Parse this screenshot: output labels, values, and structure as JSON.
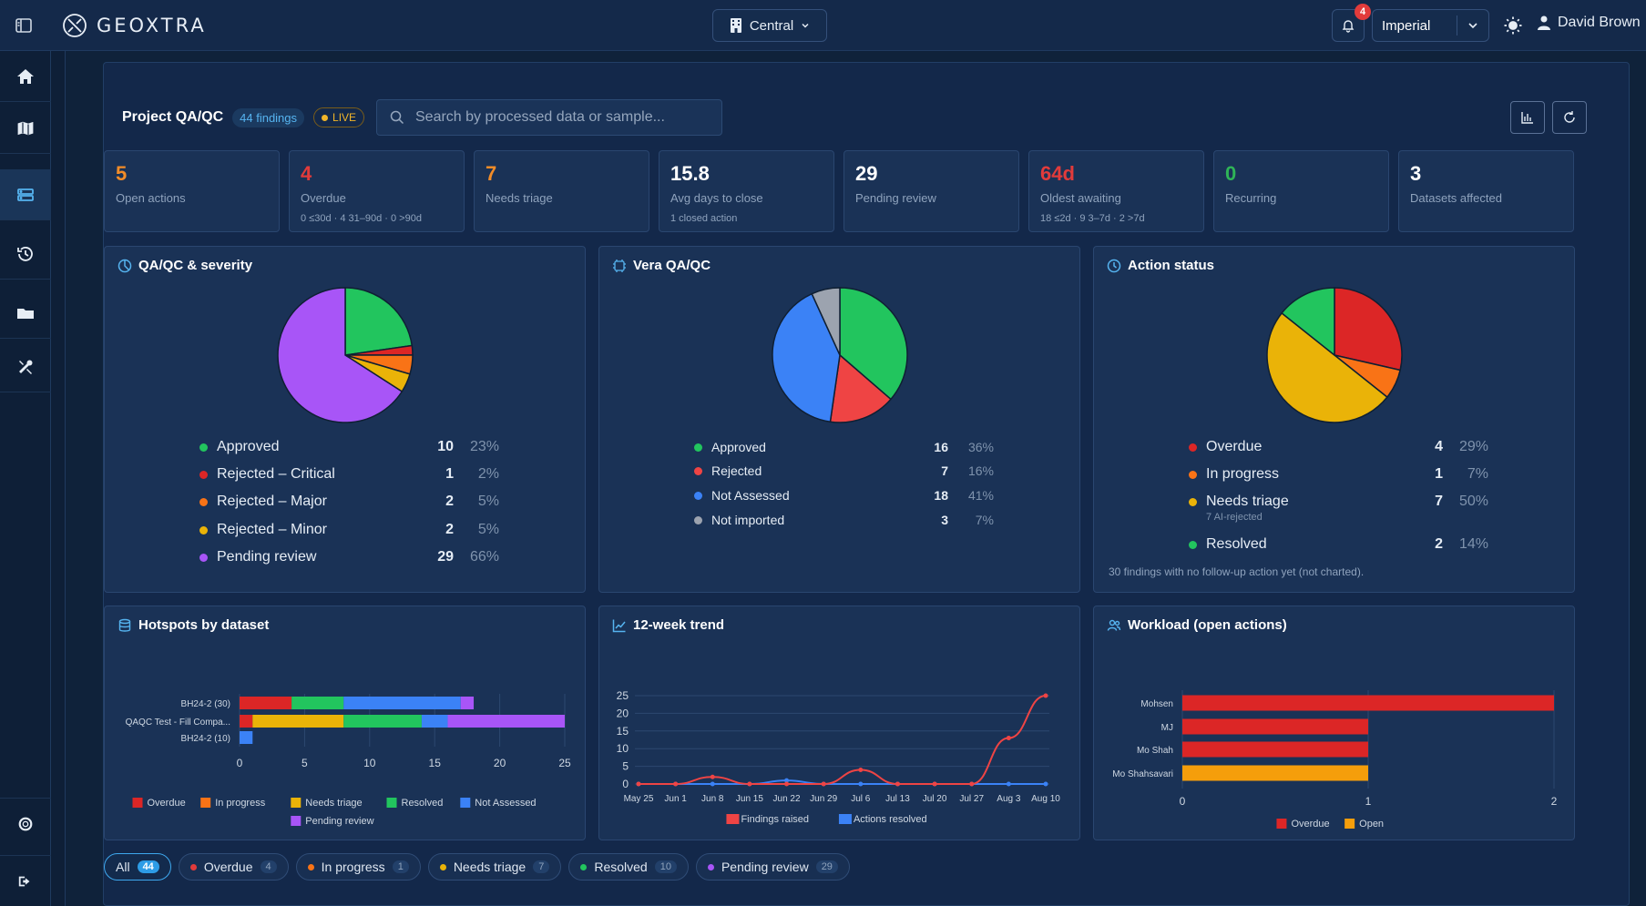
{
  "app": {
    "name": "GEOXTRA"
  },
  "topbar": {
    "site": "Central",
    "notification_count": "4",
    "units": "Imperial",
    "user_name": "David Brown"
  },
  "header": {
    "title": "Project QA/QC",
    "findings_badge": "44 findings",
    "live_badge": "LIVE",
    "search_placeholder": "Search by processed data or sample..."
  },
  "kpis": [
    {
      "value": "5",
      "label": "Open actions",
      "sub": "",
      "color": "#f28c28"
    },
    {
      "value": "4",
      "label": "Overdue",
      "sub": "0 ≤30d · 4 31–90d · 0 >90d",
      "color": "#e23b3b"
    },
    {
      "value": "7",
      "label": "Needs triage",
      "sub": "",
      "color": "#f28c28"
    },
    {
      "value": "15.8",
      "label": "Avg days to close",
      "sub": "1 closed action",
      "color": "#ffffff"
    },
    {
      "value": "29",
      "label": "Pending review",
      "sub": "",
      "color": "#ffffff"
    },
    {
      "value": "64d",
      "label": "Oldest awaiting",
      "sub": "18 ≤2d · 9 3–7d · 2 >7d",
      "color": "#e23b3b"
    },
    {
      "value": "0",
      "label": "Recurring",
      "sub": "",
      "color": "#2fb457"
    },
    {
      "value": "3",
      "label": "Datasets affected",
      "sub": "",
      "color": "#ffffff"
    }
  ],
  "cards": {
    "severity": {
      "title": "QA/QC & severity",
      "items": [
        {
          "name": "Approved",
          "count": "10",
          "pct": "23%",
          "color": "#22c55e",
          "value": 10
        },
        {
          "name": "Rejected – Critical",
          "count": "1",
          "pct": "2%",
          "color": "#dc2626",
          "value": 1
        },
        {
          "name": "Rejected – Major",
          "count": "2",
          "pct": "5%",
          "color": "#f97316",
          "value": 2
        },
        {
          "name": "Rejected – Minor",
          "count": "2",
          "pct": "5%",
          "color": "#eab308",
          "value": 2
        },
        {
          "name": "Pending review",
          "count": "29",
          "pct": "66%",
          "color": "#a855f7",
          "value": 29
        }
      ]
    },
    "vera": {
      "title": "Vera QA/QC",
      "items": [
        {
          "name": "Approved",
          "count": "16",
          "pct": "36%",
          "color": "#22c55e",
          "value": 16
        },
        {
          "name": "Rejected",
          "count": "7",
          "pct": "16%",
          "color": "#ef4444",
          "value": 7
        },
        {
          "name": "Not Assessed",
          "count": "18",
          "pct": "41%",
          "color": "#3b82f6",
          "value": 18
        },
        {
          "name": "Not imported",
          "count": "3",
          "pct": "7%",
          "color": "#9ca3af",
          "value": 3
        }
      ]
    },
    "action": {
      "title": "Action status",
      "items": [
        {
          "name": "Overdue",
          "count": "4",
          "pct": "29%",
          "color": "#dc2626",
          "value": 4,
          "sub": ""
        },
        {
          "name": "In progress",
          "count": "1",
          "pct": "7%",
          "color": "#f97316",
          "value": 1,
          "sub": ""
        },
        {
          "name": "Needs triage",
          "count": "7",
          "pct": "50%",
          "color": "#eab308",
          "value": 7,
          "sub": "7 AI-rejected"
        },
        {
          "name": "Resolved",
          "count": "2",
          "pct": "14%",
          "color": "#22c55e",
          "value": 2,
          "sub": ""
        }
      ],
      "note": "30 findings with no follow-up action yet (not charted)."
    },
    "hotspots": {
      "title": "Hotspots by dataset"
    },
    "trend": {
      "title": "12-week trend"
    },
    "workload": {
      "title": "Workload (open actions)"
    }
  },
  "chart_data": [
    {
      "type": "bar",
      "orientation": "horizontal",
      "stacked": true,
      "categories": [
        "BH24-2 (30)",
        "QAQC Test - Fill Compa...",
        "BH24-2 (10)"
      ],
      "series": [
        {
          "name": "Overdue",
          "color": "#dc2626",
          "values": [
            4,
            1,
            0
          ]
        },
        {
          "name": "In progress",
          "color": "#f97316",
          "values": [
            0,
            0,
            0
          ]
        },
        {
          "name": "Needs triage",
          "color": "#eab308",
          "values": [
            0,
            7,
            0
          ]
        },
        {
          "name": "Resolved",
          "color": "#22c55e",
          "values": [
            4,
            6,
            0
          ]
        },
        {
          "name": "Not Assessed",
          "color": "#3b82f6",
          "values": [
            9,
            2,
            1
          ]
        },
        {
          "name": "Pending review",
          "color": "#a855f7",
          "values": [
            1,
            9,
            0
          ]
        }
      ],
      "xlim": [
        0,
        25
      ],
      "xticks": [
        0,
        5,
        10,
        15,
        20,
        25
      ],
      "legend": "bottom"
    },
    {
      "type": "line",
      "categories": [
        "May 25",
        "Jun 1",
        "Jun 8",
        "Jun 15",
        "Jun 22",
        "Jun 29",
        "Jul 6",
        "Jul 13",
        "Jul 20",
        "Jul 27",
        "Aug 3",
        "Aug 10"
      ],
      "series": [
        {
          "name": "Findings raised",
          "color": "#ef4444",
          "values": [
            0,
            0,
            2,
            0,
            0,
            0,
            4,
            0,
            0,
            0,
            13,
            25
          ]
        },
        {
          "name": "Actions resolved",
          "color": "#3b82f6",
          "values": [
            0,
            0,
            0,
            0,
            1,
            0,
            0,
            0,
            0,
            0,
            0,
            0
          ]
        }
      ],
      "ylim": [
        0,
        25
      ],
      "yticks": [
        0,
        5,
        10,
        15,
        20,
        25
      ],
      "grid": true,
      "legend": "bottom"
    },
    {
      "type": "bar",
      "orientation": "horizontal",
      "categories": [
        "Mohsen",
        "MJ",
        "Mo Shah",
        "Mo Shahsavari"
      ],
      "series": [
        {
          "name": "Overdue",
          "color": "#dc2626",
          "values": [
            2,
            1,
            1,
            0
          ]
        },
        {
          "name": "Open",
          "color": "#f59e0b",
          "values": [
            0,
            0,
            0,
            1
          ]
        }
      ],
      "xlim": [
        0,
        2
      ],
      "xticks": [
        0,
        1,
        2
      ],
      "legend": "bottom"
    }
  ],
  "filters": [
    {
      "label": "All",
      "count": "44",
      "color": "",
      "active": true
    },
    {
      "label": "Overdue",
      "count": "4",
      "color": "#e23b3b"
    },
    {
      "label": "In progress",
      "count": "1",
      "color": "#f97316"
    },
    {
      "label": "Needs triage",
      "count": "7",
      "color": "#eab308"
    },
    {
      "label": "Resolved",
      "count": "10",
      "color": "#22c55e"
    },
    {
      "label": "Pending review",
      "count": "29",
      "color": "#a855f7"
    }
  ]
}
